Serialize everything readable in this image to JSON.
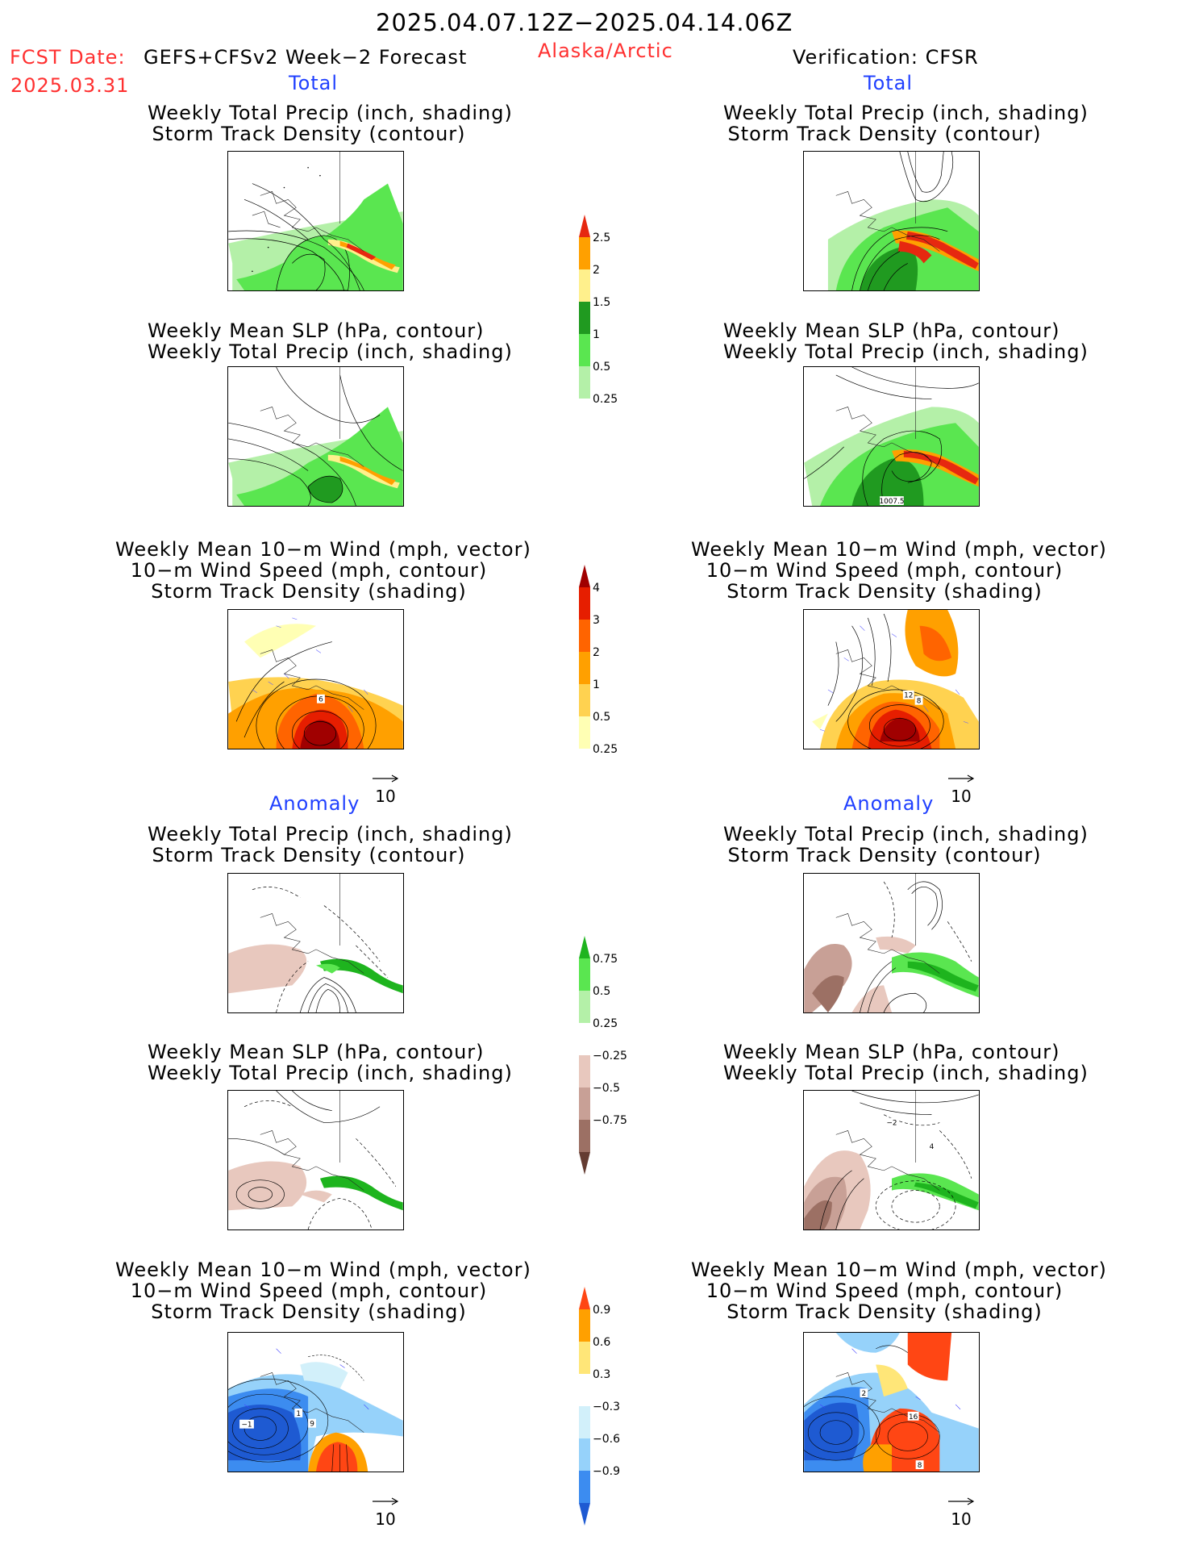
{
  "header": {
    "valid_range": "2025.04.07.12Z−2025.04.14.06Z",
    "fcst_label": "FCST Date:",
    "fcst_model": "GEFS+CFSv2 Week−2 Forecast",
    "fcst_date": "2025.03.31",
    "region": "Alaska/Arctic",
    "verification": "Verification: CFSR"
  },
  "colors": {
    "red_text": "#ff3030",
    "blue_text": "#2040ff"
  },
  "sections": {
    "total_left": "Total",
    "total_right": "Total",
    "anomaly_left": "Anomaly",
    "anomaly_right": "Anomaly"
  },
  "panel_titles": {
    "precip_storm": [
      "Weekly Total Precip (inch, shading)",
      "Storm Track Density (contour)"
    ],
    "slp_precip": [
      "Weekly Mean SLP (hPa, contour)",
      "Weekly Total Precip (inch, shading)"
    ],
    "wind_storm": [
      "Weekly Mean 10−m Wind (mph, vector)",
      "10−m Wind Speed (mph, contour)",
      "Storm Track Density (shading)"
    ]
  },
  "vector_ref": "10",
  "map_labels": {
    "slp_right_contour": "1007.5",
    "wind_left_6": "6",
    "wind_right_12": "12",
    "wind_right_8": "8",
    "anom_wind_left_m1": "−1",
    "anom_wind_left_1": "1",
    "anom_wind_left_9": "9",
    "anom_wind_right_2": "2",
    "anom_wind_right_16": "16",
    "anom_wind_right_8": "8",
    "anom_slp_right_m2": "−2",
    "anom_slp_right_4": "4"
  },
  "chart_data": [
    {
      "type": "heatmap",
      "name": "precip_total_colorbar",
      "levels": [
        0.25,
        0.5,
        1,
        1.5,
        2,
        2.5
      ],
      "tick_labels": [
        "0.25",
        "0.5",
        "1",
        "1.5",
        "2",
        "2.5"
      ],
      "colors": [
        "#ffffff",
        "#b4f0a8",
        "#5ae650",
        "#209a20",
        "#fff08c",
        "#ffa000",
        "#e62810"
      ]
    },
    {
      "type": "heatmap",
      "name": "storm_density_total_colorbar",
      "levels": [
        0.25,
        0.5,
        1,
        2,
        3,
        4
      ],
      "tick_labels": [
        "0.25",
        "0.5",
        "1",
        "2",
        "3",
        "4"
      ],
      "colors": [
        "#ffffff",
        "#ffffb4",
        "#ffd250",
        "#ffa000",
        "#ff6400",
        "#e61e00",
        "#a00000"
      ]
    },
    {
      "type": "heatmap",
      "name": "precip_anomaly_colorbar",
      "levels": [
        -0.75,
        -0.5,
        -0.25,
        0.25,
        0.5,
        0.75
      ],
      "tick_labels": [
        "−0.75",
        "−0.5",
        "−0.25",
        "0.25",
        "0.5",
        "0.75"
      ],
      "colors": [
        "#643c32",
        "#9c7064",
        "#c8a096",
        "#e8c8be",
        "#ffffff",
        "#b4f0a8",
        "#5ae650",
        "#1eb41e"
      ]
    },
    {
      "type": "heatmap",
      "name": "storm_density_anomaly_colorbar",
      "levels": [
        -0.9,
        -0.6,
        -0.3,
        0.3,
        0.6,
        0.9
      ],
      "tick_labels": [
        "−0.9",
        "−0.6",
        "−0.3",
        "0.3",
        "0.6",
        "0.9"
      ],
      "colors": [
        "#1e5ad2",
        "#3c8cf0",
        "#96d2fa",
        "#d2f0fa",
        "#ffffff",
        "#ffe678",
        "#ffa000",
        "#ff4614"
      ]
    }
  ]
}
